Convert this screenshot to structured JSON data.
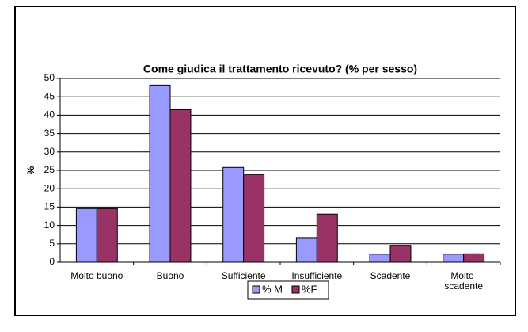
{
  "chart_data": {
    "type": "bar",
    "title": "Come giudica il trattamento ricevuto? (% per sesso)",
    "y_label": "%",
    "categories": [
      "Molto buono",
      "Buono",
      "Sufficiente",
      "Insufficiente",
      "Scadente",
      "Molto scadente"
    ],
    "series": [
      {
        "name": "% M",
        "color": "#9999ff",
        "values": [
          14.6,
          48.2,
          25.8,
          6.7,
          2.2,
          2.2
        ]
      },
      {
        "name": "%F",
        "color": "#993366",
        "values": [
          14.6,
          41.5,
          23.9,
          13.1,
          4.6,
          2.3
        ]
      }
    ],
    "ylim": [
      0,
      50
    ],
    "yticks": [
      0,
      5,
      10,
      15,
      20,
      25,
      30,
      35,
      40,
      45,
      50
    ],
    "grid": true,
    "legend": "bottom"
  }
}
